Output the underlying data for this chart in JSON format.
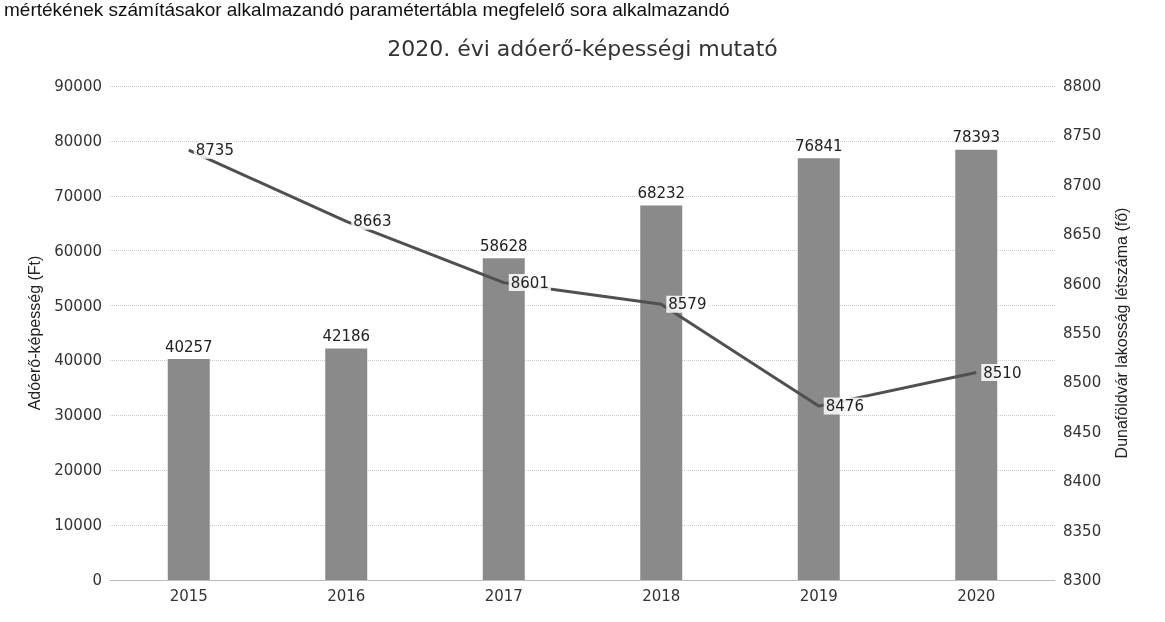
{
  "chart_data": {
    "type": "bar",
    "title": "2020. évi adóerő-képességi mutató",
    "annotations": [
      "mértékének számításakor alkalmazandó paramétertábla megfelelő sora alkalmazandó"
    ],
    "ylabel": "Adóerő-képesség (Ft)",
    "y2label": "Dunaföldvár lakosság létszáma (fő)",
    "categories": [
      "2015",
      "2016",
      "2017",
      "2018",
      "2019",
      "2020"
    ],
    "series": [
      {
        "color": "#8a8a8a",
        "values": [
          40257,
          42186,
          58628,
          68232,
          76841,
          78393
        ]
      },
      {
        "type": "line",
        "axis": "y2",
        "color": "#505050",
        "values": [
          8735,
          8663,
          8601,
          8579,
          8476,
          8510
        ]
      }
    ],
    "ylim": [
      0,
      90000
    ],
    "yticks": [
      0,
      10000,
      20000,
      30000,
      40000,
      50000,
      60000,
      70000,
      80000,
      90000
    ],
    "y2lim": [
      8300,
      8800
    ],
    "y2ticks": [
      8300,
      8350,
      8400,
      8450,
      8500,
      8550,
      8600,
      8650,
      8700,
      8750,
      8800
    ],
    "grid": "y",
    "data_labels": true,
    "marker": "none"
  }
}
